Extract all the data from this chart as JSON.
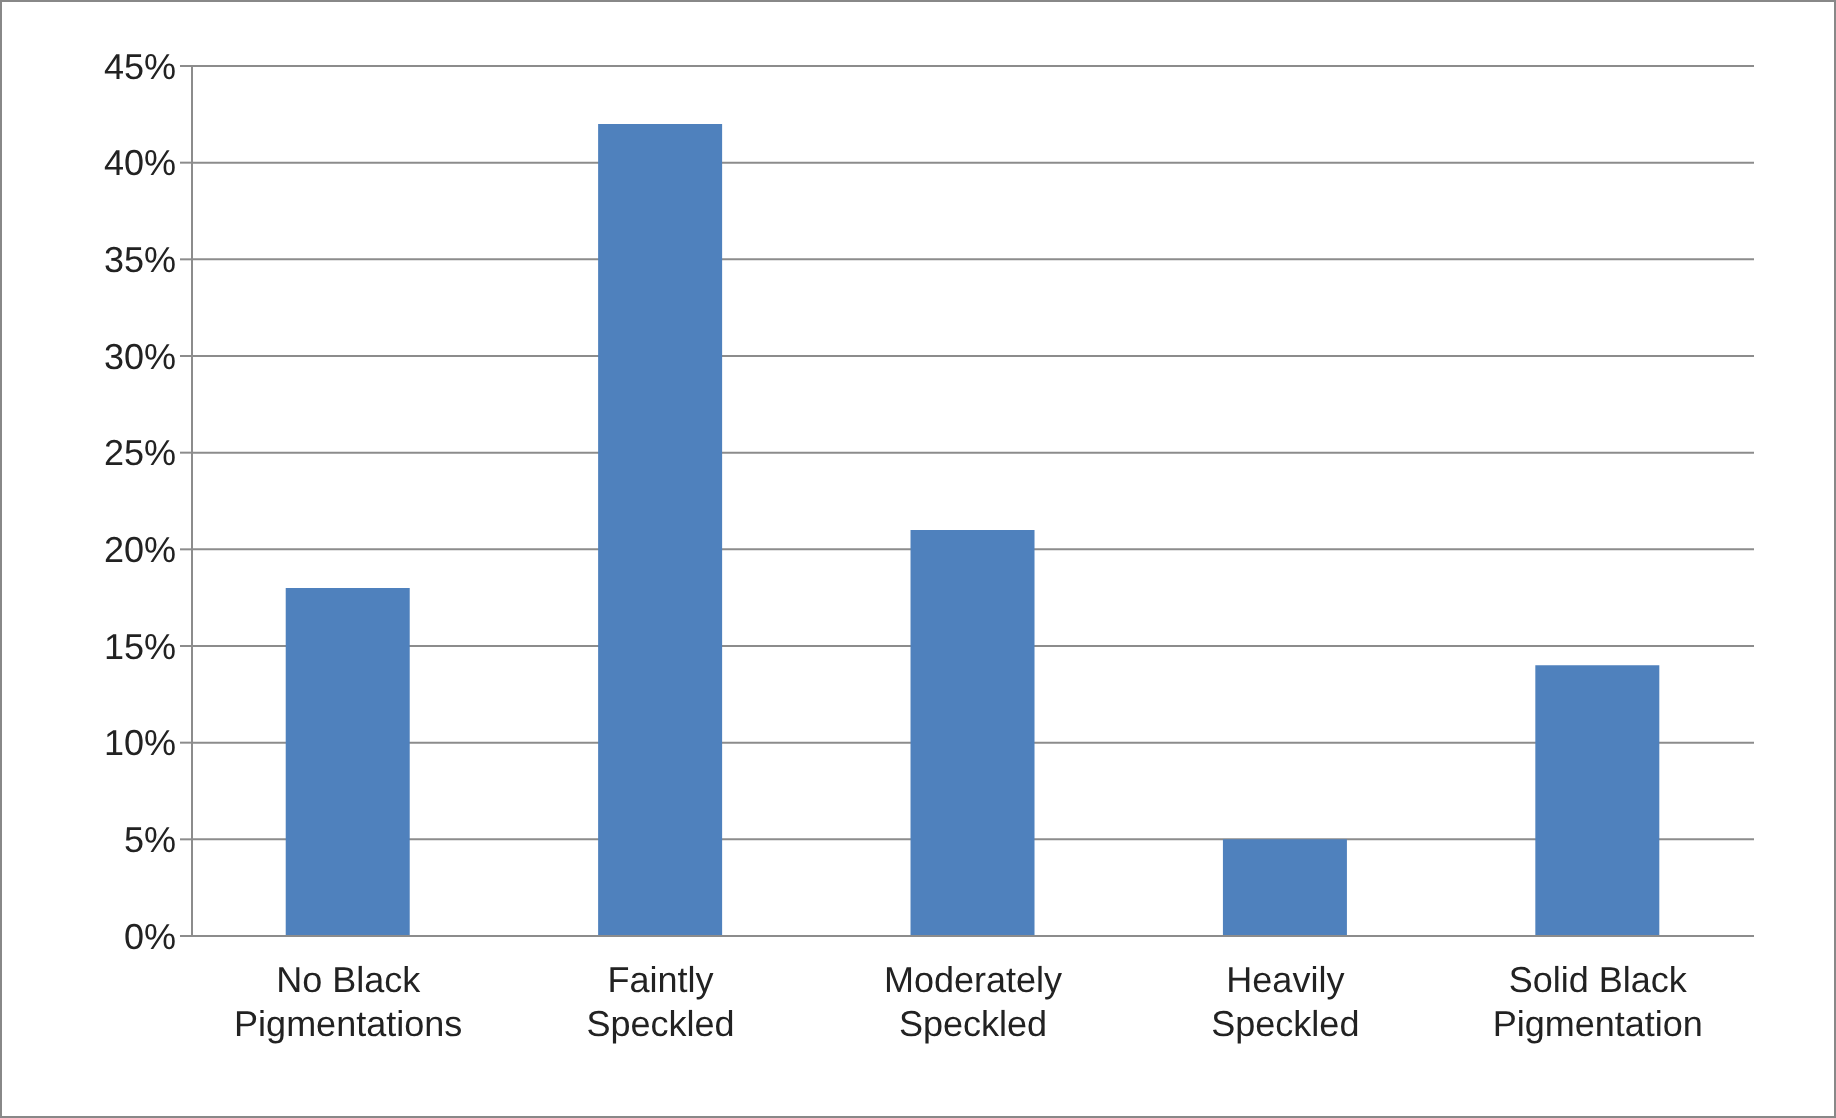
{
  "chart_data": {
    "type": "bar",
    "categories": [
      "No Black Pigmentations",
      "Faintly Speckled",
      "Moderately Speckled",
      "Heavily Speckled",
      "Solid Black Pigmentation"
    ],
    "values": [
      18,
      42,
      21,
      5,
      14
    ],
    "color": "#4f81bd",
    "ylim": [
      0,
      45
    ],
    "yticks": [
      {
        "value": 0,
        "label": "0%"
      },
      {
        "value": 5,
        "label": "5%"
      },
      {
        "value": 10,
        "label": "10%"
      },
      {
        "value": 15,
        "label": "15%"
      },
      {
        "value": 20,
        "label": "20%"
      },
      {
        "value": 25,
        "label": "25%"
      },
      {
        "value": 30,
        "label": "30%"
      },
      {
        "value": 35,
        "label": "35%"
      },
      {
        "value": 40,
        "label": "40%"
      },
      {
        "value": 45,
        "label": "45%"
      }
    ],
    "grid": "y",
    "legend": false
  }
}
